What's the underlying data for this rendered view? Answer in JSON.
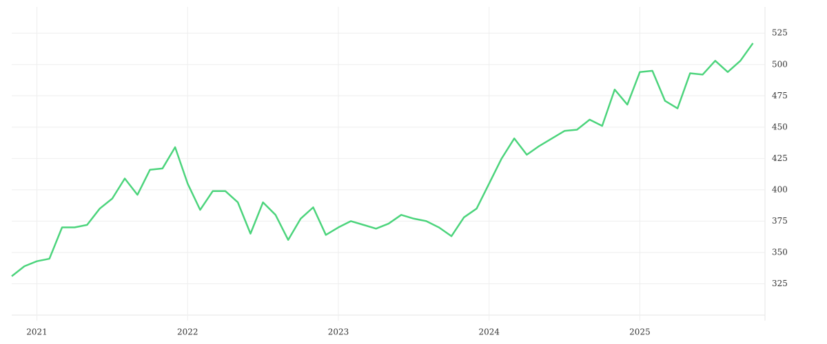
{
  "chart_data": {
    "type": "line",
    "x": [
      2020.833,
      2020.917,
      2021.0,
      2021.083,
      2021.167,
      2021.25,
      2021.333,
      2021.417,
      2021.5,
      2021.583,
      2021.667,
      2021.75,
      2021.833,
      2021.917,
      2022.0,
      2022.083,
      2022.167,
      2022.25,
      2022.333,
      2022.417,
      2022.5,
      2022.583,
      2022.667,
      2022.75,
      2022.833,
      2022.917,
      2023.0,
      2023.083,
      2023.167,
      2023.25,
      2023.333,
      2023.417,
      2023.5,
      2023.583,
      2023.667,
      2023.75,
      2023.833,
      2023.917,
      2024.0,
      2024.083,
      2024.167,
      2024.25,
      2024.333,
      2024.417,
      2024.5,
      2024.583,
      2024.667,
      2024.75,
      2024.833,
      2024.917,
      2025.0,
      2025.083,
      2025.167,
      2025.25,
      2025.333,
      2025.417,
      2025.5,
      2025.583,
      2025.667,
      2025.75
    ],
    "values": [
      331,
      339,
      343,
      345,
      370,
      370,
      372,
      385,
      393,
      409,
      396,
      416,
      417,
      434,
      405,
      384,
      399,
      399,
      390,
      365,
      390,
      380,
      360,
      377,
      386,
      364,
      370,
      375,
      372,
      369,
      373,
      380,
      377,
      375,
      370,
      363,
      378,
      385,
      405,
      425,
      441,
      428,
      435,
      441,
      447,
      448,
      456,
      451,
      480,
      468,
      494,
      495,
      471,
      465,
      493,
      492,
      503,
      494,
      503,
      517
    ],
    "color": "#4cd47c",
    "xlim": [
      2020.833,
      2025.83
    ],
    "xticks": [
      2021,
      2022,
      2023,
      2024,
      2025
    ],
    "ylim": [
      300,
      546
    ],
    "yticks": [
      325,
      350,
      375,
      400,
      425,
      450,
      475,
      500,
      525
    ],
    "grid": true
  }
}
